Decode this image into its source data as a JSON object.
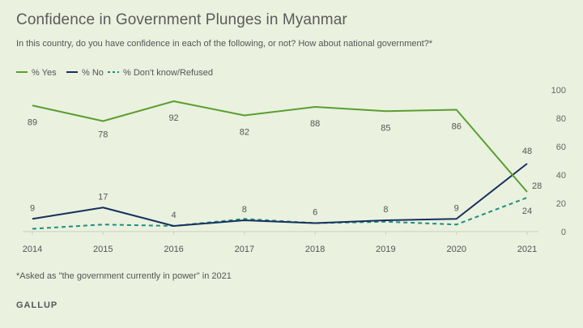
{
  "title": "Confidence in Government Plunges in Myanmar",
  "subtitle": "In this country, do you have confidence in each of the following, or not? How about national government?*",
  "footnote": "*Asked as \"the government currently in power\" in 2021",
  "brand": "GALLUP",
  "colors": {
    "yes": "#5a9e2f",
    "no": "#17305e",
    "dk": "#1e8e7e",
    "axis": "#c8d0be",
    "grid": "#d6dccb"
  },
  "chart_data": {
    "type": "line",
    "title": "Confidence in Government Plunges in Myanmar",
    "x": [
      "2014",
      "2015",
      "2016",
      "2017",
      "2018",
      "2019",
      "2020",
      "2021"
    ],
    "ylim": [
      0,
      100
    ],
    "yticks": [
      "0",
      "20",
      "40",
      "60",
      "80",
      "100"
    ],
    "legend": "top-left",
    "series": [
      {
        "name": "% Yes",
        "values": [
          89,
          78,
          92,
          82,
          88,
          85,
          86,
          28
        ],
        "labels": [
          "89",
          "78",
          "92",
          "82",
          "88",
          "85",
          "86",
          "28"
        ]
      },
      {
        "name": "% No",
        "values": [
          9,
          17,
          4,
          8,
          6,
          8,
          9,
          48
        ],
        "labels": [
          "9",
          "17",
          "4",
          "8",
          "6",
          "8",
          "9",
          "48"
        ]
      },
      {
        "name": "% Don't know/Refused",
        "values": [
          2,
          5,
          4,
          9,
          6,
          7,
          5,
          24
        ],
        "labels": [
          "",
          "",
          "",
          "",
          "",
          "",
          "",
          "24"
        ]
      }
    ]
  }
}
